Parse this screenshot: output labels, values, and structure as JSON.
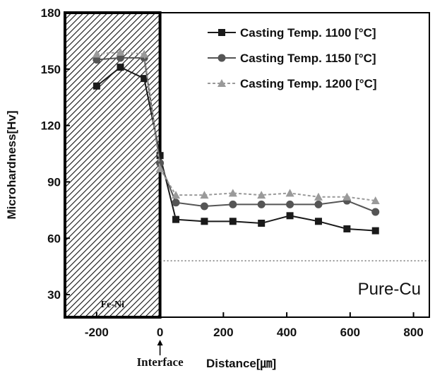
{
  "chart_data": {
    "type": "line",
    "xlabel": "Distance[㎛]",
    "ylabel": "Microhardness[Hv]",
    "xlim": [
      -300,
      850
    ],
    "ylim": [
      18,
      180
    ],
    "x_ticks": [
      -200,
      0,
      200,
      400,
      600,
      800
    ],
    "y_ticks": [
      30,
      60,
      90,
      120,
      150,
      180
    ],
    "grid": false,
    "legend_position": "top-right",
    "series": [
      {
        "name": "Casting Temp. 1100 [°C]",
        "color": "#1a1a1a",
        "marker": "square",
        "x": [
          -200,
          -125,
          -50,
          0,
          50,
          140,
          230,
          320,
          410,
          500,
          590,
          680
        ],
        "values": [
          141,
          151,
          145,
          104,
          70,
          69,
          69,
          68,
          72,
          69,
          65,
          64
        ]
      },
      {
        "name": "Casting Temp. 1150 [°C]",
        "color": "#555555",
        "marker": "circle",
        "x": [
          -200,
          -125,
          -50,
          0,
          50,
          140,
          230,
          320,
          410,
          500,
          590,
          680
        ],
        "values": [
          155,
          156,
          156,
          100,
          79,
          77,
          78,
          78,
          78,
          78,
          80,
          74
        ]
      },
      {
        "name": "Casting Temp. 1200 [°C]",
        "color": "#9a9a9a",
        "marker": "triangle",
        "x": [
          -200,
          -125,
          -50,
          0,
          50,
          140,
          230,
          320,
          410,
          500,
          590,
          680
        ],
        "values": [
          158,
          159,
          158,
          97,
          83,
          83,
          84,
          83,
          84,
          82,
          82,
          80
        ]
      }
    ],
    "reference_line": {
      "y": 48,
      "style": "dotted"
    },
    "shaded_region": {
      "x_from": -300,
      "x_to": 0,
      "label": "Fe-Ni"
    },
    "annotations": {
      "interface": "Interface",
      "pure_cu": "Pure-Cu"
    }
  }
}
